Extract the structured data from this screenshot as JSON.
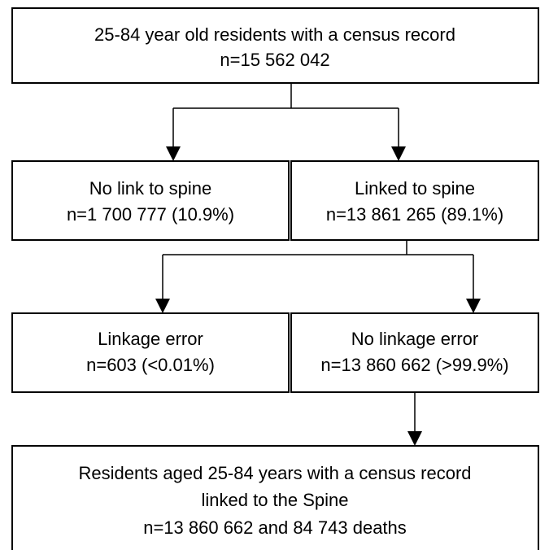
{
  "nodes": [
    {
      "lines": [
        "25-84 year old residents with a census record",
        "n=15 562 042"
      ]
    },
    {
      "lines": [
        "No link to spine",
        "n=1 700 777 (10.9%)"
      ]
    },
    {
      "lines": [
        "Linked to spine",
        "n=13 861 265 (89.1%)"
      ]
    },
    {
      "lines": [
        "Linkage error",
        "n=603 (<0.01%)"
      ]
    },
    {
      "lines": [
        "No linkage error",
        "n=13 860 662 (>99.9%)"
      ]
    },
    {
      "lines": [
        "Residents aged 25-84 years with a census record",
        "linked to the Spine",
        "n=13 860 662 and 84 743 deaths"
      ]
    }
  ]
}
